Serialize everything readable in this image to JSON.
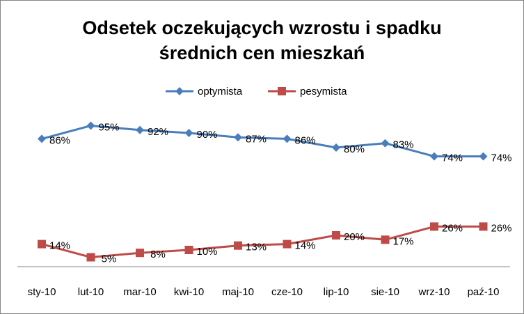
{
  "chart_data": {
    "type": "line",
    "title_lines": [
      "Odsetek oczekujących wzrostu i spadku",
      "średnich cen mieszkań"
    ],
    "categories": [
      "sty-10",
      "lut-10",
      "mar-10",
      "kwi-10",
      "maj-10",
      "cze-10",
      "lip-10",
      "sie-10",
      "wrz-10",
      "paź-10"
    ],
    "series": [
      {
        "name": "optymista",
        "color": "#4a7ebb",
        "marker": "diamond",
        "values": [
          86,
          95,
          92,
          90,
          87,
          86,
          80,
          83,
          74,
          74
        ],
        "labels": [
          "86%",
          "95%",
          "92%",
          "90%",
          "87%",
          "86%",
          "80%",
          "83%",
          "74%",
          "74%"
        ]
      },
      {
        "name": "pesymista",
        "color": "#be4b48",
        "marker": "square",
        "values": [
          14,
          5,
          8,
          10,
          13,
          14,
          20,
          17,
          26,
          26
        ],
        "labels": [
          "14%",
          "5%",
          "8%",
          "10%",
          "13%",
          "14%",
          "20%",
          "17%",
          "26%",
          "26%"
        ]
      }
    ],
    "legend_position": "top",
    "grid": false,
    "xlabel": "",
    "ylabel": ""
  }
}
